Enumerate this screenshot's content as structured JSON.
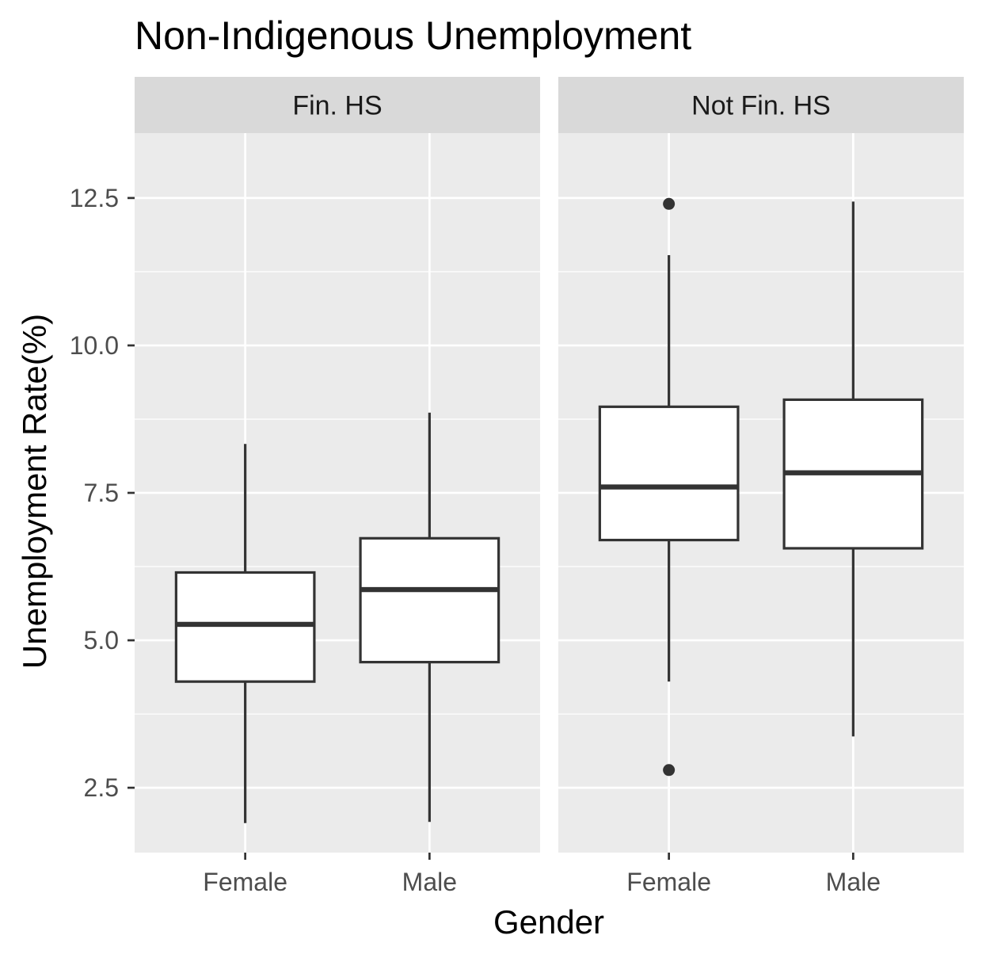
{
  "chart_data": {
    "type": "boxplot",
    "title": "Non-Indigenous Unemployment",
    "xlabel": "Gender",
    "ylabel": "Unemployment Rate(%)",
    "ylim": [
      1.4,
      13.6
    ],
    "yticks": [
      2.5,
      5.0,
      7.5,
      10.0,
      12.5
    ],
    "ytick_labels": [
      "2.5",
      "5.0",
      "7.5",
      "10.0",
      "12.5"
    ],
    "categories": [
      "Female",
      "Male"
    ],
    "grid": true,
    "colors": {
      "panel_bg": "#ebebeb",
      "strip_bg": "#d9d9d9",
      "grid": "#ffffff",
      "box_fill": "#ffffff",
      "box_line": "#333333"
    },
    "facets": [
      {
        "label": "Fin. HS",
        "boxes": [
          {
            "category": "Female",
            "whisker_low": 1.9,
            "q1": 4.3,
            "median": 5.27,
            "q3": 6.15,
            "whisker_high": 8.33,
            "outliers": []
          },
          {
            "category": "Male",
            "whisker_low": 1.92,
            "q1": 4.63,
            "median": 5.86,
            "q3": 6.73,
            "whisker_high": 8.86,
            "outliers": []
          }
        ]
      },
      {
        "label": "Not Fin. HS",
        "boxes": [
          {
            "category": "Female",
            "whisker_low": 4.3,
            "q1": 6.7,
            "median": 7.6,
            "q3": 8.96,
            "whisker_high": 11.53,
            "outliers": [
              12.4,
              2.8
            ]
          },
          {
            "category": "Male",
            "whisker_low": 3.37,
            "q1": 6.56,
            "median": 7.84,
            "q3": 9.08,
            "whisker_high": 12.44,
            "outliers": []
          }
        ]
      }
    ]
  }
}
